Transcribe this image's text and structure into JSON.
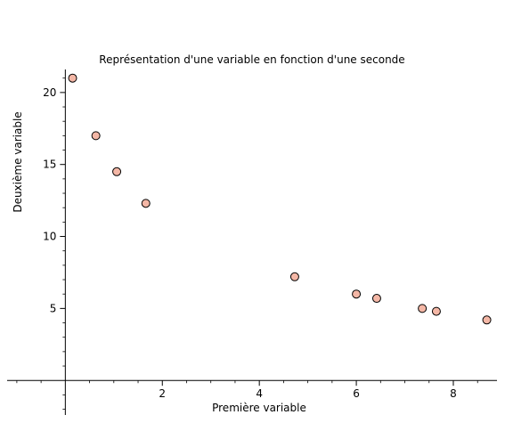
{
  "chart_data": {
    "type": "scatter",
    "title": "Représentation d'une variable en fonction d'une seconde",
    "xlabel": "Première variable",
    "ylabel": "Deuxième variable",
    "xlim": [
      -1.2,
      8.9
    ],
    "ylim": [
      -2.4,
      21.6
    ],
    "x_ticks": [
      2,
      4,
      6,
      8
    ],
    "y_ticks": [
      5,
      10,
      15,
      20
    ],
    "grid": false,
    "marker_color": "#f4b7a6",
    "series": [
      {
        "x": [
          0.15,
          0.63,
          1.06,
          1.66,
          4.73,
          6.0,
          6.42,
          7.36,
          7.65,
          8.69
        ],
        "y": [
          21.0,
          17.0,
          14.5,
          12.3,
          7.2,
          6.0,
          5.7,
          5.0,
          4.8,
          4.2
        ]
      }
    ]
  }
}
